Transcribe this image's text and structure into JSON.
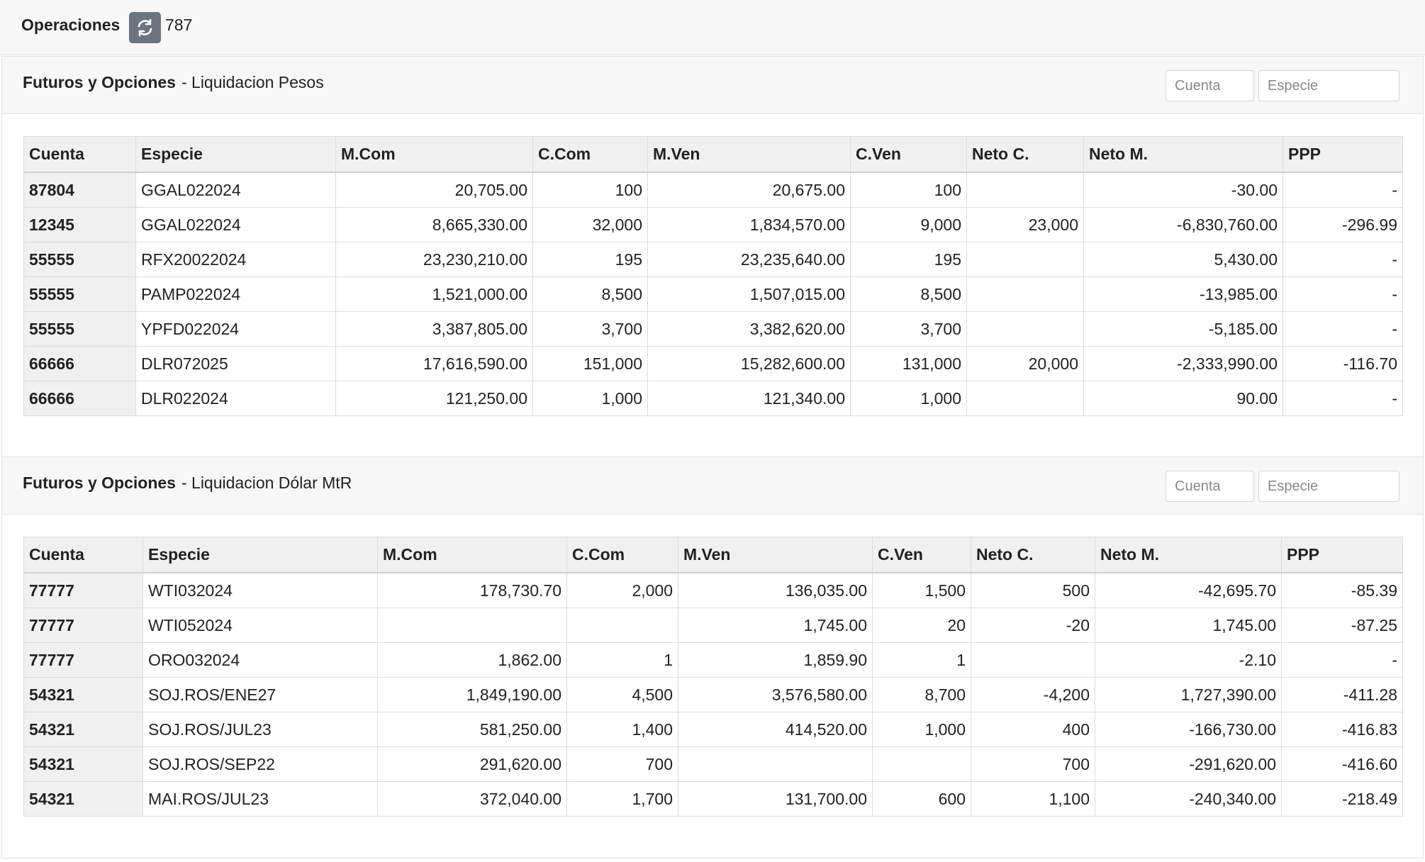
{
  "header": {
    "title": "Operaciones",
    "count": 787
  },
  "panels": [
    {
      "title": "Futuros y Opciones",
      "subtitle": "- Liquidacion Pesos",
      "filters": [
        "Cuenta",
        "Especie"
      ],
      "columns": [
        "Cuenta",
        "Especie",
        "M.Com",
        "C.Com",
        "M.Ven",
        "C.Ven",
        "Neto C.",
        "Neto M.",
        "PPP"
      ],
      "rows": [
        [
          "87804",
          "GGAL022024",
          "20,705.00",
          "100",
          "20,675.00",
          "100",
          null,
          "-30.00",
          "-"
        ],
        [
          "12345",
          "GGAL022024",
          "8,665,330.00",
          "32,000",
          "1,834,570.00",
          "9,000",
          "23,000",
          "-6,830,760.00",
          "-296.99"
        ],
        [
          "55555",
          "RFX20022024",
          "23,230,210.00",
          "195",
          "23,235,640.00",
          "195",
          null,
          "5,430.00",
          "-"
        ],
        [
          "55555",
          "PAMP022024",
          "1,521,000.00",
          "8,500",
          "1,507,015.00",
          "8,500",
          null,
          "-13,985.00",
          "-"
        ],
        [
          "55555",
          "YPFD022024",
          "3,387,805.00",
          "3,700",
          "3,382,620.00",
          "3,700",
          null,
          "-5,185.00",
          "-"
        ],
        [
          "66666",
          "DLR072025",
          "17,616,590.00",
          "151,000",
          "15,282,600.00",
          "131,000",
          "20,000",
          "-2,333,990.00",
          "-116.70"
        ],
        [
          "66666",
          "DLR022024",
          "121,250.00",
          "1,000",
          "121,340.00",
          "1,000",
          null,
          "90.00",
          "-"
        ]
      ]
    },
    {
      "title": "Futuros y Opciones",
      "subtitle": "- Liquidacion Dólar MtR",
      "filters": [
        "Cuenta",
        "Especie"
      ],
      "columns": [
        "Cuenta",
        "Especie",
        "M.Com",
        "C.Com",
        "M.Ven",
        "C.Ven",
        "Neto C.",
        "Neto M.",
        "PPP"
      ],
      "rows": [
        [
          "77777",
          "WTI032024",
          "178,730.70",
          "2,000",
          "136,035.00",
          "1,500",
          "500",
          "-42,695.70",
          "-85.39"
        ],
        [
          "77777",
          "WTI052024",
          null,
          null,
          "1,745.00",
          "20",
          "-20",
          "1,745.00",
          "-87.25"
        ],
        [
          "77777",
          "ORO032024",
          "1,862.00",
          "1",
          "1,859.90",
          "1",
          null,
          "-2.10",
          "-"
        ],
        [
          "54321",
          "SOJ.ROS/ENE27",
          "1,849,190.00",
          "4,500",
          "3,576,580.00",
          "8,700",
          "-4,200",
          "1,727,390.00",
          "-411.28"
        ],
        [
          "54321",
          "SOJ.ROS/JUL23",
          "581,250.00",
          "1,400",
          "414,520.00",
          "1,000",
          "400",
          "-166,730.00",
          "-416.83"
        ],
        [
          "54321",
          "SOJ.ROS/SEP22",
          "291,620.00",
          "700",
          null,
          null,
          "700",
          "-291,620.00",
          "-416.60"
        ],
        [
          "54321",
          "MAI.ROS/JUL23",
          "372,040.00",
          "1,700",
          "131,700.00",
          "600",
          "1,100",
          "-240,340.00",
          "-218.49"
        ]
      ]
    }
  ]
}
